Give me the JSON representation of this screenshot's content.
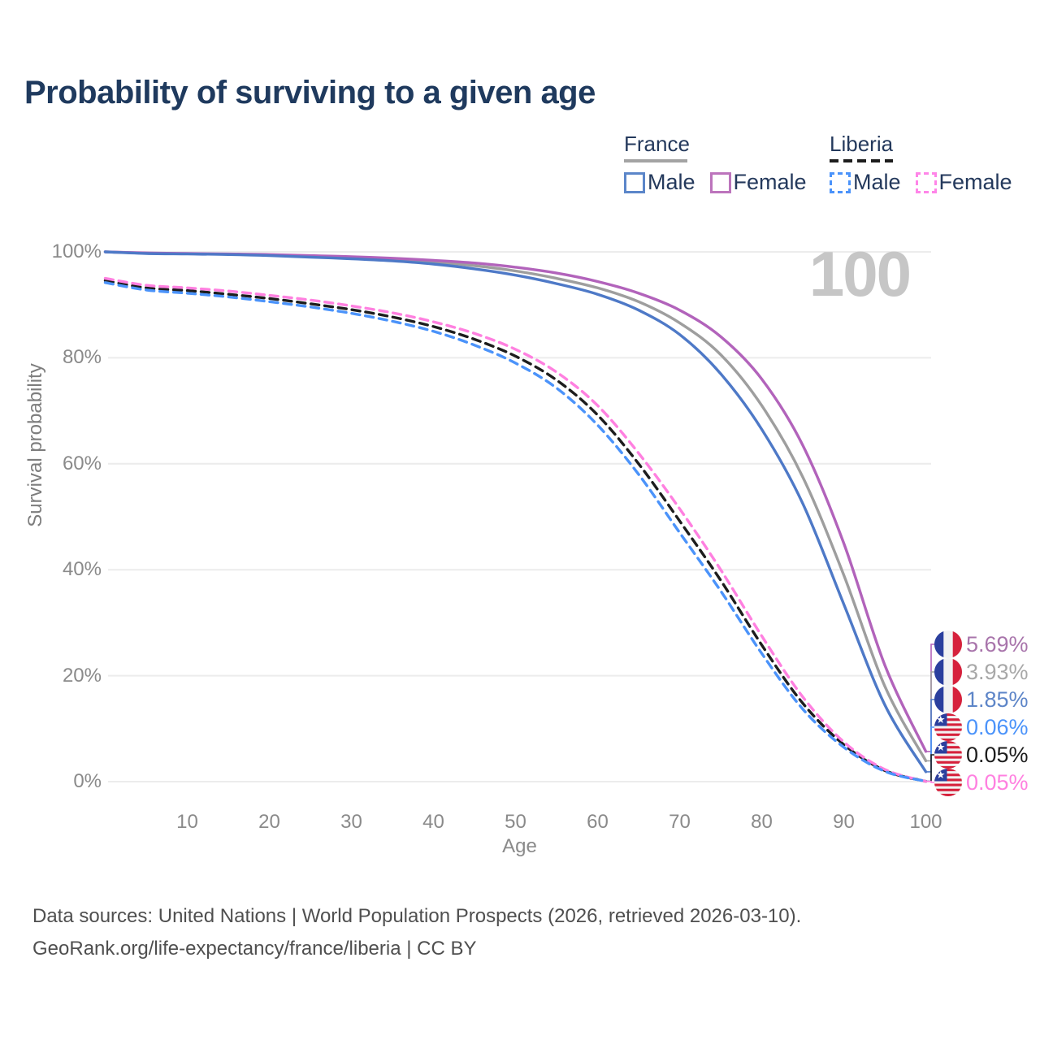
{
  "title": "Probability of surviving to a given age",
  "legend": {
    "france": {
      "label": "France",
      "male": "Male",
      "female": "Female"
    },
    "liberia": {
      "label": "Liberia",
      "male": "Male",
      "female": "Female"
    }
  },
  "age_indicator": "100",
  "axes": {
    "y_label": "Survival probability",
    "x_label": "Age",
    "y_ticks": [
      {
        "label": "100%",
        "value": 100
      },
      {
        "label": "80%",
        "value": 80
      },
      {
        "label": "60%",
        "value": 60
      },
      {
        "label": "40%",
        "value": 40
      },
      {
        "label": "20%",
        "value": 20
      },
      {
        "label": "0%",
        "value": 0
      }
    ],
    "x_ticks": [
      {
        "label": "10",
        "value": 10
      },
      {
        "label": "20",
        "value": 20
      },
      {
        "label": "30",
        "value": 30
      },
      {
        "label": "40",
        "value": 40
      },
      {
        "label": "50",
        "value": 50
      },
      {
        "label": "60",
        "value": 60
      },
      {
        "label": "70",
        "value": 70
      },
      {
        "label": "80",
        "value": 80
      },
      {
        "label": "90",
        "value": 90
      },
      {
        "label": "100",
        "value": 100
      }
    ]
  },
  "footer": {
    "line1": "Data sources: United Nations | World Population Prospects (2026, retrieved 2026-03-10).",
    "line2": "GeoRank.org/life-expectancy/france/liberia | CC BY"
  },
  "colors": {
    "title": "#1f3a5e",
    "gridline": "#ececec",
    "axis_text": "#8a8a8a",
    "france_male": "#4e79c7",
    "france_female": "#b263bb",
    "france_total": "#9e9e9e",
    "liberia_male": "#4b93fa",
    "liberia_female": "#ff80e0",
    "liberia_total": "#1d1d1d"
  },
  "chart_data": {
    "type": "line",
    "title": "Probability of surviving to a given age",
    "xlabel": "Age",
    "ylabel": "Survival probability",
    "xlim": [
      0,
      100
    ],
    "ylim": [
      0,
      100
    ],
    "grid": "horizontal",
    "x": [
      0,
      5,
      10,
      15,
      20,
      25,
      30,
      35,
      40,
      45,
      50,
      55,
      60,
      65,
      70,
      75,
      80,
      85,
      90,
      95,
      100
    ],
    "series": [
      {
        "name": "France Total",
        "style": "solid",
        "color": "#9e9e9e",
        "values": [
          100,
          99.75,
          99.65,
          99.55,
          99.4,
          99.15,
          98.9,
          98.55,
          98.1,
          97.4,
          96.4,
          95.0,
          93.2,
          90.6,
          86.6,
          80.6,
          71.0,
          57.5,
          39.0,
          18.0,
          3.93
        ]
      },
      {
        "name": "France Female",
        "style": "solid",
        "color": "#b263bb",
        "values": [
          100,
          99.8,
          99.7,
          99.6,
          99.5,
          99.3,
          99.1,
          98.8,
          98.4,
          97.9,
          97.1,
          96.0,
          94.4,
          92.2,
          89.0,
          84.0,
          76.0,
          63.5,
          45.0,
          22.0,
          5.69
        ]
      },
      {
        "name": "France Male",
        "style": "solid",
        "color": "#4e79c7",
        "values": [
          100,
          99.7,
          99.6,
          99.5,
          99.3,
          99.0,
          98.7,
          98.3,
          97.7,
          96.8,
          95.6,
          94.0,
          92.0,
          89.0,
          84.4,
          77.0,
          66.5,
          52.5,
          33.5,
          14.5,
          1.85
        ]
      },
      {
        "name": "Liberia Total",
        "style": "dashed",
        "color": "#1d1d1d",
        "values": [
          94.6,
          93.2,
          92.7,
          92.0,
          91.2,
          90.2,
          89.1,
          87.7,
          85.9,
          83.5,
          80.3,
          75.8,
          69.2,
          60.0,
          49.2,
          38.0,
          25.8,
          14.8,
          7.0,
          2.1,
          0.05
        ]
      },
      {
        "name": "Liberia Female",
        "style": "dashed",
        "color": "#ff80e0",
        "values": [
          95.0,
          93.7,
          93.2,
          92.6,
          91.8,
          90.9,
          89.8,
          88.5,
          86.8,
          84.6,
          81.6,
          77.3,
          71.0,
          62.0,
          51.5,
          40.0,
          27.5,
          16.0,
          7.5,
          2.3,
          0.05
        ]
      },
      {
        "name": "Liberia Male",
        "style": "dashed",
        "color": "#4b93fa",
        "values": [
          94.2,
          92.8,
          92.2,
          91.5,
          90.6,
          89.6,
          88.4,
          86.9,
          85.0,
          82.4,
          79.0,
          74.3,
          67.3,
          58.0,
          47.0,
          36.0,
          24.2,
          13.7,
          6.5,
          1.95,
          0.06
        ]
      }
    ],
    "end_labels": [
      {
        "series": "France Female",
        "flag": "france",
        "text": "5.69%",
        "value": 5.69,
        "text_color": "#a874ab",
        "leader_color": "#b263bb"
      },
      {
        "series": "France Total",
        "flag": "france",
        "text": "3.93%",
        "value": 3.93,
        "text_color": "#a8a8a8",
        "leader_color": "#9e9e9e"
      },
      {
        "series": "France Male",
        "flag": "france",
        "text": "1.85%",
        "value": 1.85,
        "text_color": "#5d85c8",
        "leader_color": "#4e79c7"
      },
      {
        "series": "Liberia Male",
        "flag": "liberia",
        "text": "0.06%",
        "value": 0.06,
        "text_color": "#4b93fa",
        "leader_color": "#4b93fa"
      },
      {
        "series": "Liberia Total",
        "flag": "liberia",
        "text": "0.05%",
        "value": 0.05,
        "text_color": "#1d1d1d",
        "leader_color": "#1d1d1d"
      },
      {
        "series": "Liberia Female",
        "flag": "liberia",
        "text": "0.05%",
        "value": 0.05,
        "text_color": "#ff80e0",
        "leader_color": "#ff80e0"
      }
    ],
    "legend_position": "top-right"
  }
}
